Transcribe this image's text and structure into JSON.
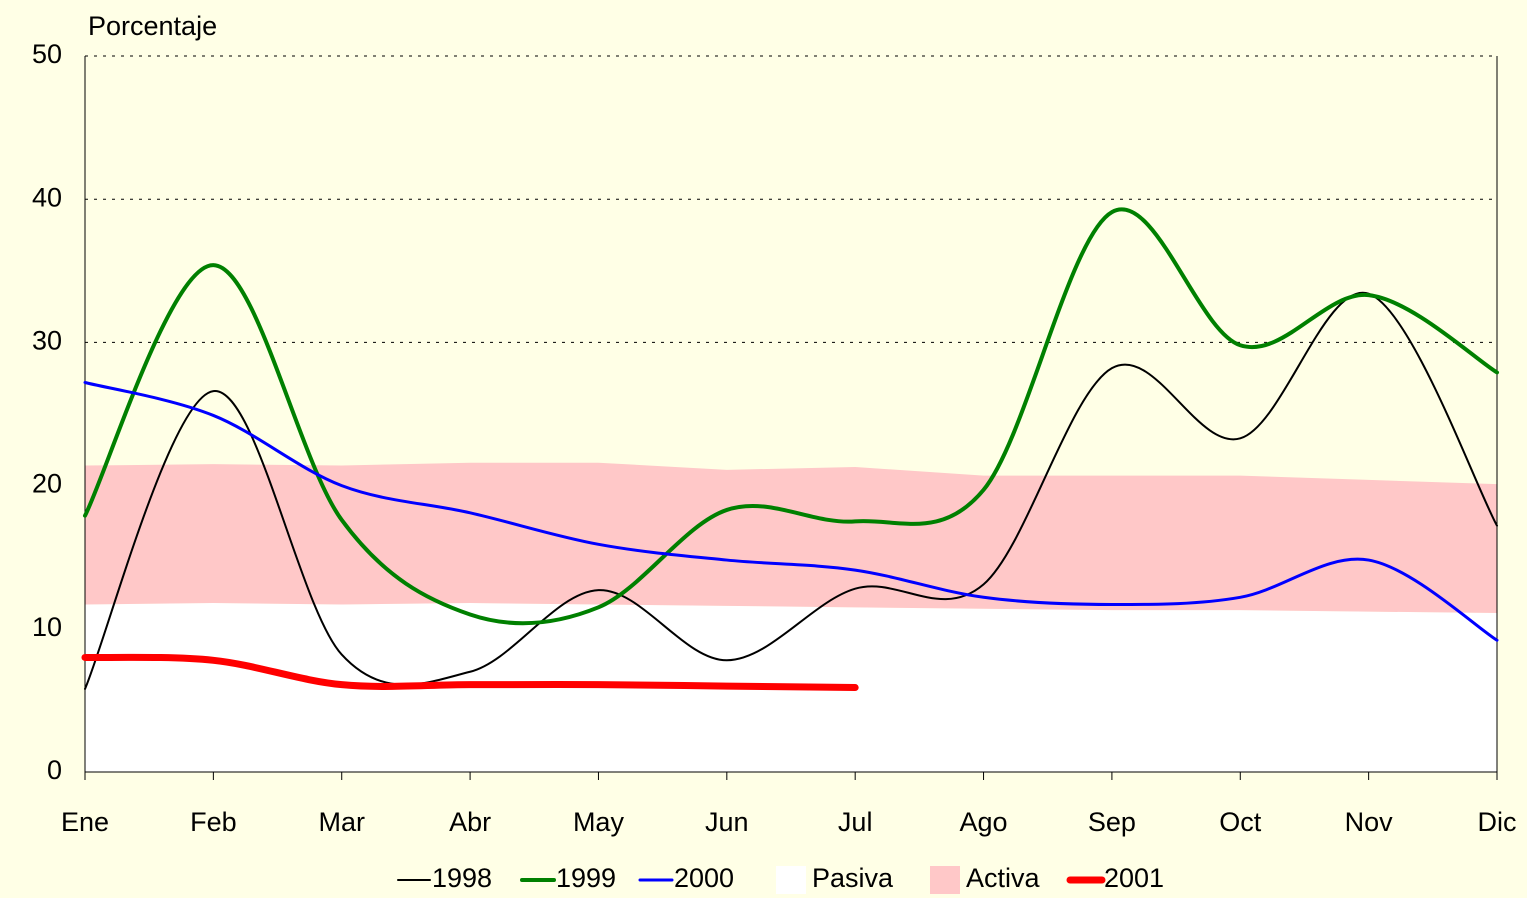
{
  "chart_data": {
    "type": "line",
    "y_label": "Porcentaje",
    "categories": [
      "Ene",
      "Feb",
      "Mar",
      "Abr",
      "May",
      "Jun",
      "Jul",
      "Ago",
      "Sep",
      "Oct",
      "Nov",
      "Dic"
    ],
    "ylim": [
      0,
      50
    ],
    "yticks": [
      0,
      10,
      20,
      30,
      40,
      50
    ],
    "grid": true,
    "legend": "bottom",
    "series": [
      {
        "name": "1998",
        "color": "#000000",
        "style": "line",
        "values": [
          5.8,
          26.6,
          8.2,
          7.0,
          12.7,
          7.8,
          12.8,
          13.1,
          28.2,
          23.3,
          33.4,
          17.2
        ]
      },
      {
        "name": "1999",
        "color": "#008000",
        "style": "line",
        "values": [
          17.9,
          35.4,
          17.6,
          11.0,
          11.5,
          18.3,
          17.5,
          19.7,
          39.1,
          29.8,
          33.3,
          27.9
        ]
      },
      {
        "name": "2000",
        "color": "#0000ff",
        "style": "line",
        "values": [
          27.2,
          24.9,
          20.0,
          18.1,
          15.9,
          14.8,
          14.1,
          12.2,
          11.7,
          12.2,
          14.8,
          9.2
        ]
      },
      {
        "name": "Pasiva",
        "color": "#ffffff",
        "style": "area",
        "values": [
          11.7,
          11.8,
          11.7,
          11.8,
          11.7,
          11.6,
          11.5,
          11.4,
          11.3,
          11.3,
          11.2,
          11.1
        ]
      },
      {
        "name": "Activa",
        "color": "#ffc8c8",
        "style": "area",
        "values": [
          9.7,
          9.7,
          9.7,
          9.8,
          9.9,
          9.5,
          9.8,
          9.3,
          9.4,
          9.4,
          9.2,
          9.0
        ]
      },
      {
        "name": "2001",
        "color": "#ff0000",
        "style": "line",
        "values": [
          8.0,
          7.8,
          6.1,
          6.1,
          6.1,
          6.0,
          5.9,
          null,
          null,
          null,
          null,
          null
        ]
      }
    ]
  }
}
